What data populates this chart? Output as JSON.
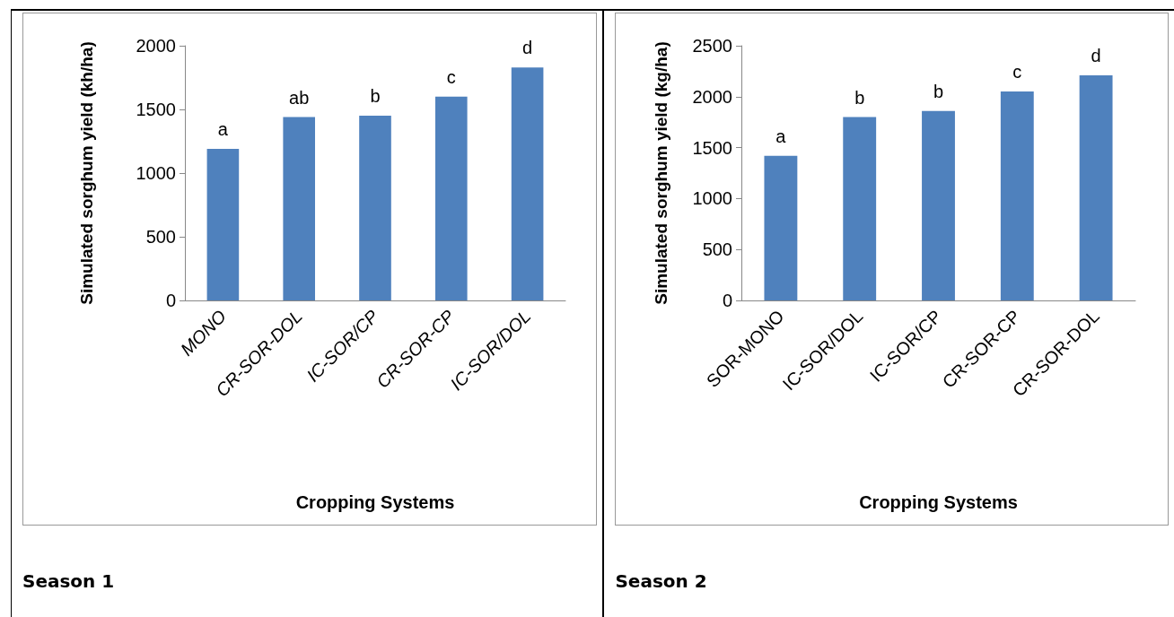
{
  "chart_data": [
    {
      "type": "bar",
      "categories": [
        "MONO",
        "CR-SOR-DOL",
        "IC-SOR/CP",
        "CR-SOR-CP",
        "IC-SOR/DOL"
      ],
      "values": [
        1190,
        1440,
        1450,
        1600,
        1830
      ],
      "color": "#4f81bd",
      "ylabel": "Simulated sorghum yield (kh/ha)",
      "xlabel": "Cropping Systems",
      "ylim": [
        0,
        2000
      ],
      "yticks": [
        0,
        500,
        1000,
        1500,
        2000
      ],
      "annotations": [
        {
          "text": "a",
          "x": "MONO",
          "y": 1190
        },
        {
          "text": "ab",
          "x": "CR-SOR-DOL",
          "y": 1440
        },
        {
          "text": "b",
          "x": "IC-SOR/CP",
          "y": 1450
        },
        {
          "text": "c",
          "x": "CR-SOR-CP",
          "y": 1600
        },
        {
          "text": "d",
          "x": "IC-SOR/DOL",
          "y": 1830
        },
        "Season 1"
      ]
    },
    {
      "type": "bar",
      "categories": [
        "SOR-MONO",
        "IC-SOR/DOL",
        "IC-SOR/CP",
        "CR-SOR-CP",
        "CR-SOR-DOL"
      ],
      "values": [
        1420,
        1800,
        1860,
        2050,
        2210
      ],
      "color": "#4f81bd",
      "ylabel": "Simulated sorghum yield (kg/ha)",
      "xlabel": "Cropping Systems",
      "ylim": [
        0,
        2500
      ],
      "yticks": [
        0,
        500,
        1000,
        1500,
        2000,
        2500
      ],
      "annotations": [
        {
          "text": "a",
          "x": "SOR-MONO",
          "y": 1420
        },
        {
          "text": "b",
          "x": "IC-SOR/DOL",
          "y": 1800
        },
        {
          "text": "b",
          "x": "IC-SOR/CP",
          "y": 1860
        },
        {
          "text": "c",
          "x": "CR-SOR-CP",
          "y": 2050
        },
        {
          "text": "d",
          "x": "CR-SOR-DOL",
          "y": 2210
        },
        "Season 2"
      ]
    }
  ]
}
